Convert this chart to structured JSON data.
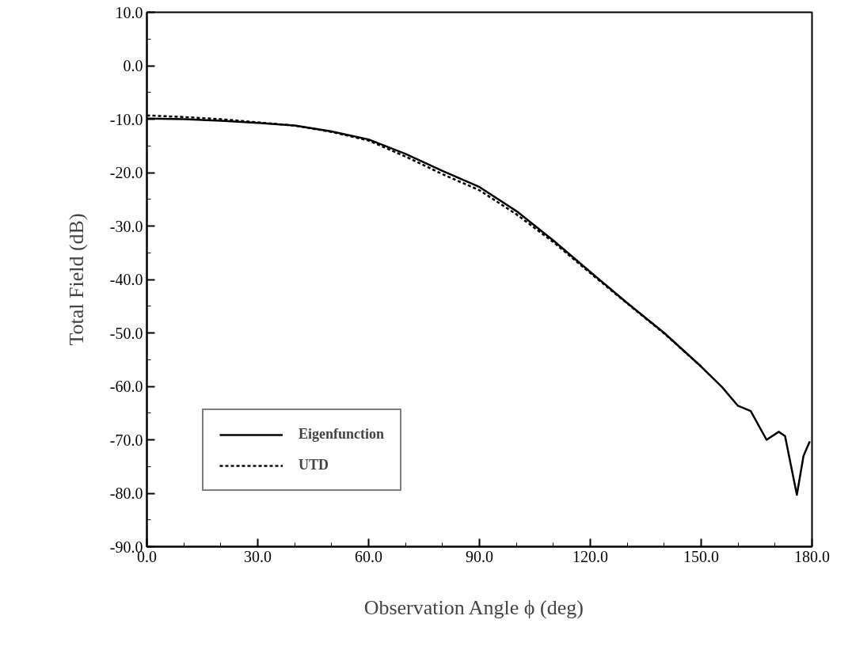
{
  "chart_data": {
    "type": "line",
    "xlabel": "Observation Angle  ϕ  (deg)",
    "ylabel": "Total Field (dB)",
    "xlim": [
      0,
      180
    ],
    "ylim": [
      -90,
      10
    ],
    "xticks": [
      {
        "value": 0,
        "label": "0.0"
      },
      {
        "value": 30,
        "label": "30.0"
      },
      {
        "value": 60,
        "label": "60.0"
      },
      {
        "value": 90,
        "label": "90.0"
      },
      {
        "value": 120,
        "label": "120.0"
      },
      {
        "value": 150,
        "label": "150.0"
      },
      {
        "value": 180,
        "label": "180.0"
      }
    ],
    "yticks": [
      {
        "value": -90,
        "label": "-90.0"
      },
      {
        "value": -80,
        "label": "-80.0"
      },
      {
        "value": -70,
        "label": "-70.0"
      },
      {
        "value": -60,
        "label": "-60.0"
      },
      {
        "value": -50,
        "label": "-50.0"
      },
      {
        "value": -40,
        "label": "-40.0"
      },
      {
        "value": -30,
        "label": "-30.0"
      },
      {
        "value": -20,
        "label": "-20.0"
      },
      {
        "value": -10,
        "label": "-10.0"
      },
      {
        "value": 0,
        "label": "0.0"
      },
      {
        "value": 10,
        "label": "10.0"
      }
    ],
    "grid": false,
    "legend": "bottom left",
    "marker": "none",
    "series": [
      {
        "name": "Eigenfunction",
        "color": "#000000",
        "line_style": "solid",
        "x": [
          0,
          10,
          20,
          30,
          40,
          50,
          60,
          70,
          80,
          90,
          100,
          110,
          120,
          130,
          140,
          150,
          155.6,
          159.9,
          163.4,
          167.7,
          171,
          172.7,
          175.9,
          177.7,
          179.4
        ],
        "values": [
          -9.9,
          -10,
          -10.3,
          -10.7,
          -11.2,
          -12.3,
          -13.8,
          -16.5,
          -19.7,
          -22.7,
          -27.2,
          -32.7,
          -38.6,
          -44.4,
          -50,
          -56.3,
          -60.1,
          -63.6,
          -64.6,
          -70,
          -68.5,
          -69.3,
          -80.3,
          -73,
          -70.3
        ]
      },
      {
        "name": "UTD",
        "color": "#000000",
        "line_style": "dashed",
        "x": [
          0,
          10,
          20,
          30,
          40,
          50,
          60,
          70,
          80,
          90,
          100,
          110,
          120,
          130,
          140,
          150
        ],
        "values": [
          -9.3,
          -9.6,
          -10,
          -10.6,
          -11.2,
          -12.4,
          -14,
          -17,
          -20.3,
          -23.3,
          -27.8,
          -33,
          -38.8,
          -44.5,
          -50.1,
          -56.3
        ]
      }
    ]
  }
}
